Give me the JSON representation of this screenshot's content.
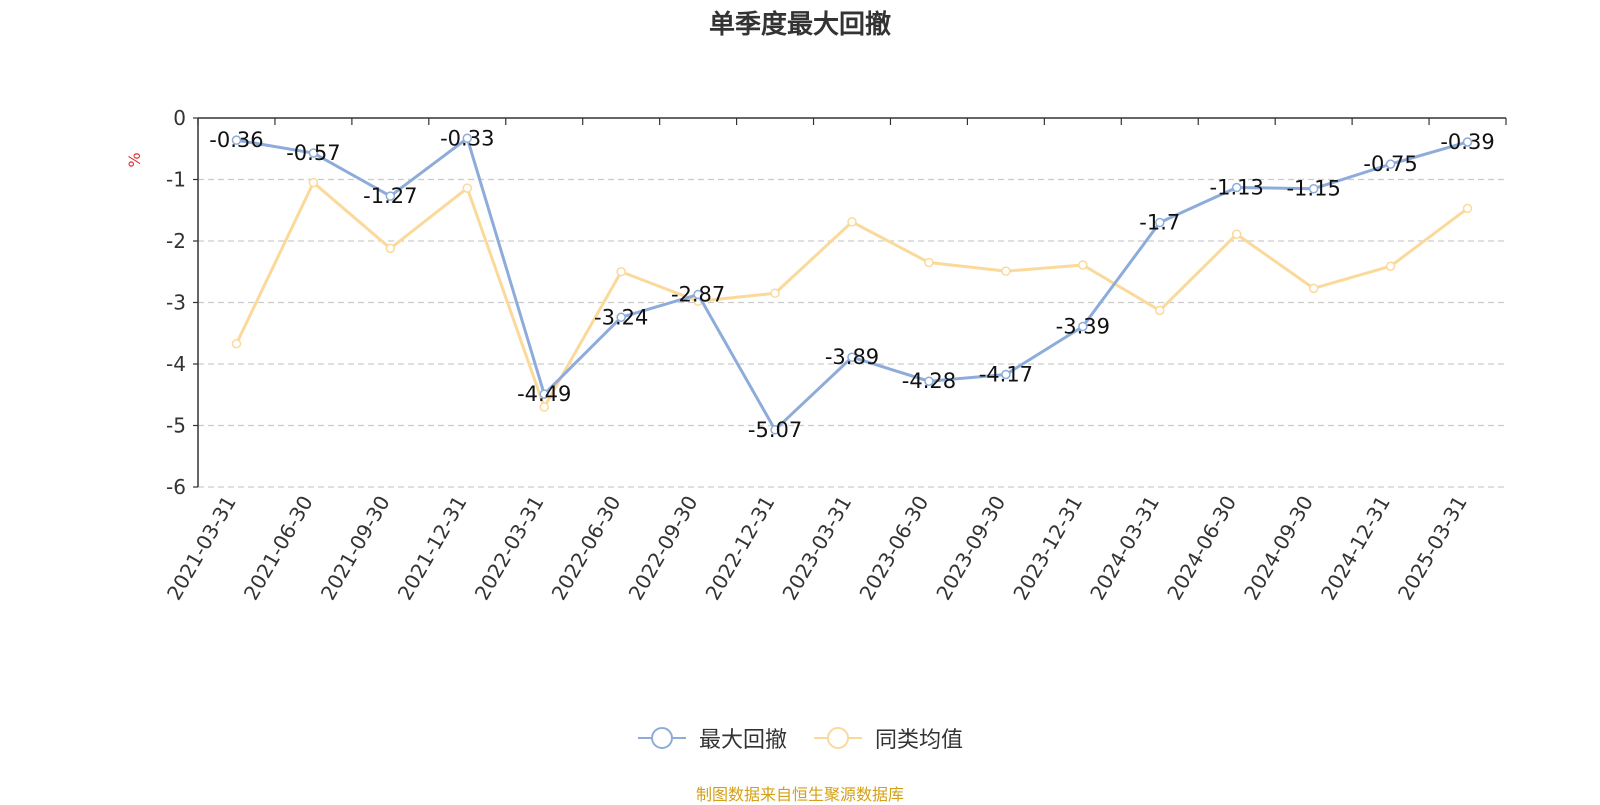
{
  "chart_data": {
    "type": "line",
    "title": "单季度最大回撤",
    "ylabel": "%",
    "ylim": [
      -6,
      0
    ],
    "yticks": [
      0,
      -1,
      -2,
      -3,
      -4,
      -5,
      -6
    ],
    "categories": [
      "2021-03-31",
      "2021-06-30",
      "2021-09-30",
      "2021-12-31",
      "2022-03-31",
      "2022-06-30",
      "2022-09-30",
      "2022-12-31",
      "2023-03-31",
      "2023-06-30",
      "2023-09-30",
      "2023-12-31",
      "2024-03-31",
      "2024-06-30",
      "2024-09-30",
      "2024-12-31",
      "2025-03-31"
    ],
    "series": [
      {
        "name": "最大回撤",
        "color": "#8eacda",
        "show_labels": true,
        "values": [
          -0.36,
          -0.57,
          -1.27,
          -0.33,
          -4.49,
          -3.24,
          -2.87,
          -5.07,
          -3.89,
          -4.28,
          -4.17,
          -3.39,
          -1.7,
          -1.13,
          -1.15,
          -0.75,
          -0.39
        ]
      },
      {
        "name": "同类均值",
        "color": "#fbd99a",
        "show_labels": false,
        "values": [
          -3.67,
          -1.05,
          -2.12,
          -1.14,
          -4.7,
          -2.5,
          -2.98,
          -2.85,
          -1.69,
          -2.35,
          -2.49,
          -2.39,
          -3.13,
          -1.89,
          -2.77,
          -2.41,
          -1.47
        ]
      }
    ],
    "grid": "horizontal-dashed",
    "legend_position": "bottom-center"
  },
  "source_text": "制图数据来自恒生聚源数据库",
  "colors": {
    "title": "#333333",
    "axis": "#333333",
    "grid": "#cccccc",
    "ylabel": "#e03030",
    "source": "#d4a017"
  }
}
